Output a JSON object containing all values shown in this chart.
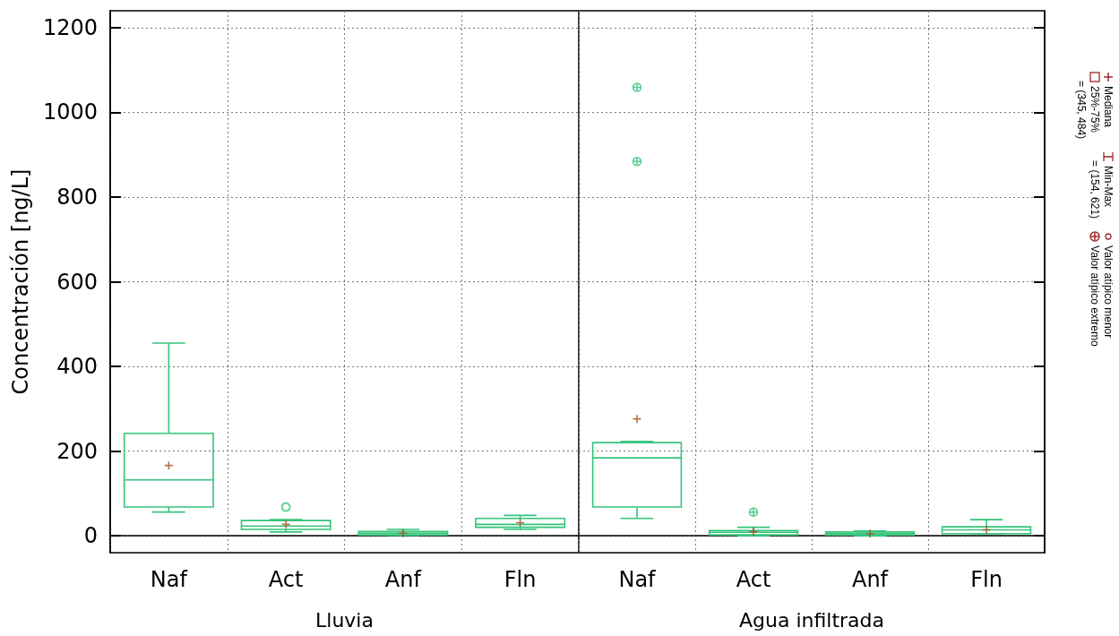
{
  "chart_data": [
    {
      "type": "box",
      "categories": [
        "Naf",
        "Act",
        "Anf",
        "Fln"
      ],
      "xlabel": "Lluvia",
      "ylabel": "Concentración [ng/L]",
      "ylim": [
        -40,
        1240
      ],
      "yticks": [
        0,
        200,
        400,
        600,
        800,
        1000,
        1200
      ],
      "grid": true,
      "series": [
        {
          "color": "#33c47a",
          "boxes": [
            {
              "low": 56,
              "q1": 68,
              "median": 132,
              "q3": 242,
              "high": 455,
              "mean": 166
            },
            {
              "low": 9,
              "q1": 15,
              "median": 23,
              "q3": 36,
              "high": 38,
              "mean": 27
            },
            {
              "low": 1,
              "q1": 2,
              "median": 6,
              "q3": 10,
              "high": 15,
              "mean": 6
            },
            {
              "low": 15,
              "q1": 20,
              "median": 27,
              "q3": 41,
              "high": 48,
              "mean": 31
            }
          ]
        },
        {
          "type": "scatter",
          "name": "Valor atípico menor",
          "color": "#33c47a",
          "marker": "circle",
          "x": [
            "Act"
          ],
          "values": [
            68
          ]
        }
      ]
    },
    {
      "type": "box",
      "categories": [
        "Naf",
        "Act",
        "Anf",
        "Fln"
      ],
      "xlabel": "Agua infiltrada",
      "ylim": [
        -40,
        1240
      ],
      "yticks": [
        0,
        200,
        400,
        600,
        800,
        1000,
        1200
      ],
      "grid": true,
      "tick_labels": "x",
      "legend": "right",
      "annotations": [
        "Mediana",
        "25%-75%",
        "= (345, 484)",
        "Min-Max",
        "= (154, 621)"
      ],
      "series": [
        {
          "color": "#33c47a",
          "boxes": [
            {
              "low": 41,
              "q1": 68,
              "median": 184,
              "q3": 220,
              "high": 223,
              "mean": 276
            },
            {
              "low": 0,
              "q1": 2,
              "median": 8,
              "q3": 12,
              "high": 20,
              "mean": 10
            },
            {
              "low": 0,
              "q1": 2,
              "median": 5,
              "q3": 9,
              "high": 11,
              "mean": 5
            },
            {
              "low": 5,
              "q1": 5,
              "median": 14,
              "q3": 21,
              "high": 38,
              "mean": 14
            }
          ]
        },
        {
          "type": "scatter",
          "name": "Valor atípico extremo",
          "color": "#33c47a",
          "marker": "cross",
          "x": [
            "Naf",
            "Naf",
            "Act"
          ],
          "values": [
            1059,
            884,
            56
          ]
        }
      ]
    }
  ]
}
